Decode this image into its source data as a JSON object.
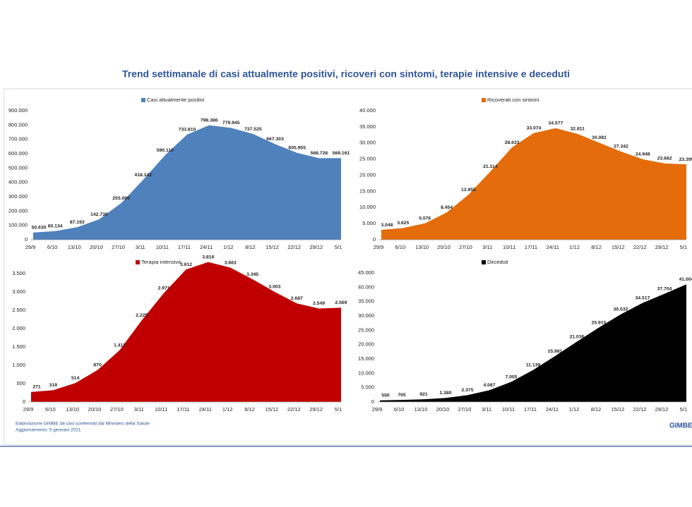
{
  "title": "Trend settimanale di casi attualmente positivi, ricoveri con sintomi, terapie intensive e deceduti",
  "chart_data": [
    {
      "type": "area",
      "categories": [
        "29/9",
        "6/10",
        "13/10",
        "20/10",
        "27/10",
        "3/11",
        "10/11",
        "17/11",
        "24/11",
        "1/12",
        "8/12",
        "15/12",
        "22/12",
        "29/12",
        "5/1"
      ],
      "series": [
        {
          "name": "Casi attualmente positivi",
          "color": "#4f81bd",
          "values": [
            50630,
            60134,
            87193,
            142739,
            255090,
            418142,
            590110,
            733810,
            798386,
            779945,
            737525,
            667303,
            605955,
            568728,
            569161
          ],
          "value_labels": [
            "50.630",
            "60.134",
            "87.193",
            "142.739",
            "255.090",
            "418.142",
            "590.110",
            "733.810",
            "798.386",
            "779.945",
            "737.525",
            "667.303",
            "605.955",
            "568.728",
            "569.161"
          ]
        }
      ],
      "ylim": [
        0,
        900000
      ],
      "yticks": [
        0,
        {
          "value": 100000,
          "label": "100.000"
        },
        {
          "value": 200000,
          "label": "200.000"
        },
        {
          "value": 300000,
          "label": "300.000"
        },
        {
          "value": 400000,
          "label": "400.000"
        },
        {
          "value": 500000,
          "label": "500.000"
        },
        {
          "value": 600000,
          "label": "600.000"
        },
        {
          "value": 700000,
          "label": "700.000"
        },
        {
          "value": 800000,
          "label": "800.000"
        },
        {
          "value": 900000,
          "label": "900.000"
        }
      ],
      "grid": false
    },
    {
      "type": "area",
      "categories": [
        "29/9",
        "6/10",
        "13/10",
        "20/10",
        "27/10",
        "3/11",
        "10/11",
        "17/11",
        "24/11",
        "1/12",
        "8/12",
        "15/12",
        "22/12",
        "29/12",
        "5/1"
      ],
      "series": [
        {
          "name": "Ricoverati con sintomi",
          "color": "#e46c0a",
          "values": [
            3048,
            3625,
            5076,
            8454,
            13955,
            21114,
            28633,
            33074,
            34577,
            32811,
            30081,
            27342,
            24948,
            23662,
            23395
          ],
          "value_labels": [
            "3.048",
            "3.625",
            "5.076",
            "8.454",
            "13.955",
            "21.114",
            "28.633",
            "33.074",
            "34.577",
            "32.811",
            "30.081",
            "27.342",
            "24.948",
            "23.662",
            "23.395"
          ]
        }
      ],
      "ylim": [
        0,
        40000
      ],
      "yticks": [
        0,
        {
          "value": 5000,
          "label": "5.000"
        },
        {
          "value": 10000,
          "label": "10.000"
        },
        {
          "value": 15000,
          "label": "15.000"
        },
        {
          "value": 20000,
          "label": "20.000"
        },
        {
          "value": 25000,
          "label": "25.000"
        },
        {
          "value": 30000,
          "label": "30.000"
        },
        {
          "value": 35000,
          "label": "35.000"
        },
        {
          "value": 40000,
          "label": "40.000"
        }
      ],
      "grid": false
    },
    {
      "type": "area",
      "categories": [
        "29/9",
        "6/10",
        "13/10",
        "20/10",
        "27/10",
        "3/11",
        "10/11",
        "17/11",
        "24/11",
        "1/12",
        "8/12",
        "15/12",
        "22/12",
        "29/12",
        "5/1"
      ],
      "series": [
        {
          "name": "Terapia intensiva",
          "color": "#c00000",
          "values": [
            271,
            319,
            514,
            870,
            1411,
            2225,
            2971,
            3612,
            3816,
            3663,
            3345,
            3003,
            2687,
            2549,
            2569
          ],
          "value_labels": [
            "271",
            "319",
            "514",
            "870",
            "1.411",
            "2.225",
            "2.971",
            "3.612",
            "3.816",
            "3.663",
            "3.345",
            "3.003",
            "2.687",
            "2.549",
            "2.569"
          ]
        }
      ],
      "ylim": [
        0,
        4000
      ],
      "yticks": [
        0,
        500,
        {
          "value": 1000,
          "label": "1.000"
        },
        {
          "value": 1500,
          "label": "1.500"
        },
        {
          "value": 2000,
          "label": "2.000"
        },
        {
          "value": 2500,
          "label": "2.500"
        },
        {
          "value": 3000,
          "label": "3.000"
        },
        {
          "value": 3500,
          "label": "3.500"
        }
      ],
      "grid": false
    },
    {
      "type": "area",
      "categories": [
        "29/9",
        "6/10",
        "13/10",
        "20/10",
        "27/10",
        "3/11",
        "10/11",
        "17/11",
        "24/11",
        "1/12",
        "8/12",
        "15/12",
        "22/12",
        "29/12",
        "5/1"
      ],
      "series": [
        {
          "name": "Deceduti",
          "color": "#000000",
          "values": [
            550,
            705,
            921,
            1380,
            2375,
            4087,
            7005,
            11139,
            15981,
            21036,
            25915,
            30532,
            34517,
            37704,
            41004
          ],
          "value_labels": [
            "550",
            "705",
            "921",
            "1.380",
            "2.375",
            "4.087",
            "7.005",
            "11.139",
            "15.981",
            "21.036",
            "25.915",
            "30.532",
            "34.517",
            "37.704",
            "41.004"
          ]
        }
      ],
      "ylim": [
        0,
        45000
      ],
      "yticks": [
        0,
        {
          "value": 5000,
          "label": "5.000"
        },
        {
          "value": 10000,
          "label": "10.000"
        },
        {
          "value": 15000,
          "label": "15.000"
        },
        {
          "value": 20000,
          "label": "20.000"
        },
        {
          "value": 25000,
          "label": "25.000"
        },
        {
          "value": 30000,
          "label": "30.000"
        },
        {
          "value": 35000,
          "label": "35.000"
        },
        {
          "value": 40000,
          "label": "40.000"
        },
        {
          "value": 45000,
          "label": "45.000"
        }
      ],
      "grid": false
    }
  ],
  "footer": {
    "source": "Elaborazione GIMBE da casi confermati dal Ministero della Salute",
    "updated": "Aggiornamento: 5 gennaio 2021"
  },
  "logo": "GIMBE"
}
